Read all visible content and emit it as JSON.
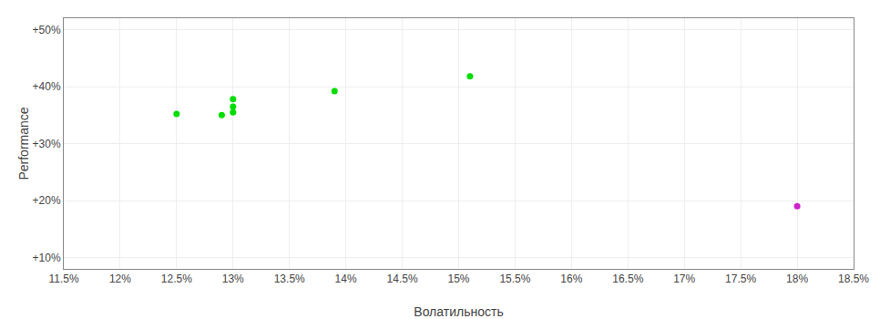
{
  "chart_data": {
    "type": "scatter",
    "xlabel": "Волатильность",
    "ylabel": "Performance",
    "xlim": [
      0.115,
      0.185
    ],
    "ylim": [
      0.08,
      0.52
    ],
    "xticks": [
      {
        "value": 0.115,
        "label": "11.5%"
      },
      {
        "value": 0.12,
        "label": "12%"
      },
      {
        "value": 0.125,
        "label": "12.5%"
      },
      {
        "value": 0.13,
        "label": "13%"
      },
      {
        "value": 0.135,
        "label": "13.5%"
      },
      {
        "value": 0.14,
        "label": "14%"
      },
      {
        "value": 0.145,
        "label": "14.5%"
      },
      {
        "value": 0.15,
        "label": "15%"
      },
      {
        "value": 0.155,
        "label": "15.5%"
      },
      {
        "value": 0.16,
        "label": "16%"
      },
      {
        "value": 0.165,
        "label": "16.5%"
      },
      {
        "value": 0.17,
        "label": "17%"
      },
      {
        "value": 0.175,
        "label": "17.5%"
      },
      {
        "value": 0.18,
        "label": "18%"
      },
      {
        "value": 0.185,
        "label": "18.5%"
      }
    ],
    "yticks": [
      {
        "value": 0.1,
        "label": "+10%"
      },
      {
        "value": 0.2,
        "label": "+20%"
      },
      {
        "value": 0.3,
        "label": "+30%"
      },
      {
        "value": 0.4,
        "label": "+40%"
      },
      {
        "value": 0.5,
        "label": "+50%"
      }
    ],
    "grid": true,
    "series": [
      {
        "color": "#00dd00",
        "x": [
          0.125,
          0.129,
          0.13,
          0.13,
          0.13,
          0.139,
          0.151
        ],
        "values": [
          0.352,
          0.35,
          0.355,
          0.365,
          0.378,
          0.392,
          0.418
        ]
      },
      {
        "color": "#cc22cc",
        "x": [
          0.18
        ],
        "values": [
          0.19
        ]
      }
    ]
  }
}
